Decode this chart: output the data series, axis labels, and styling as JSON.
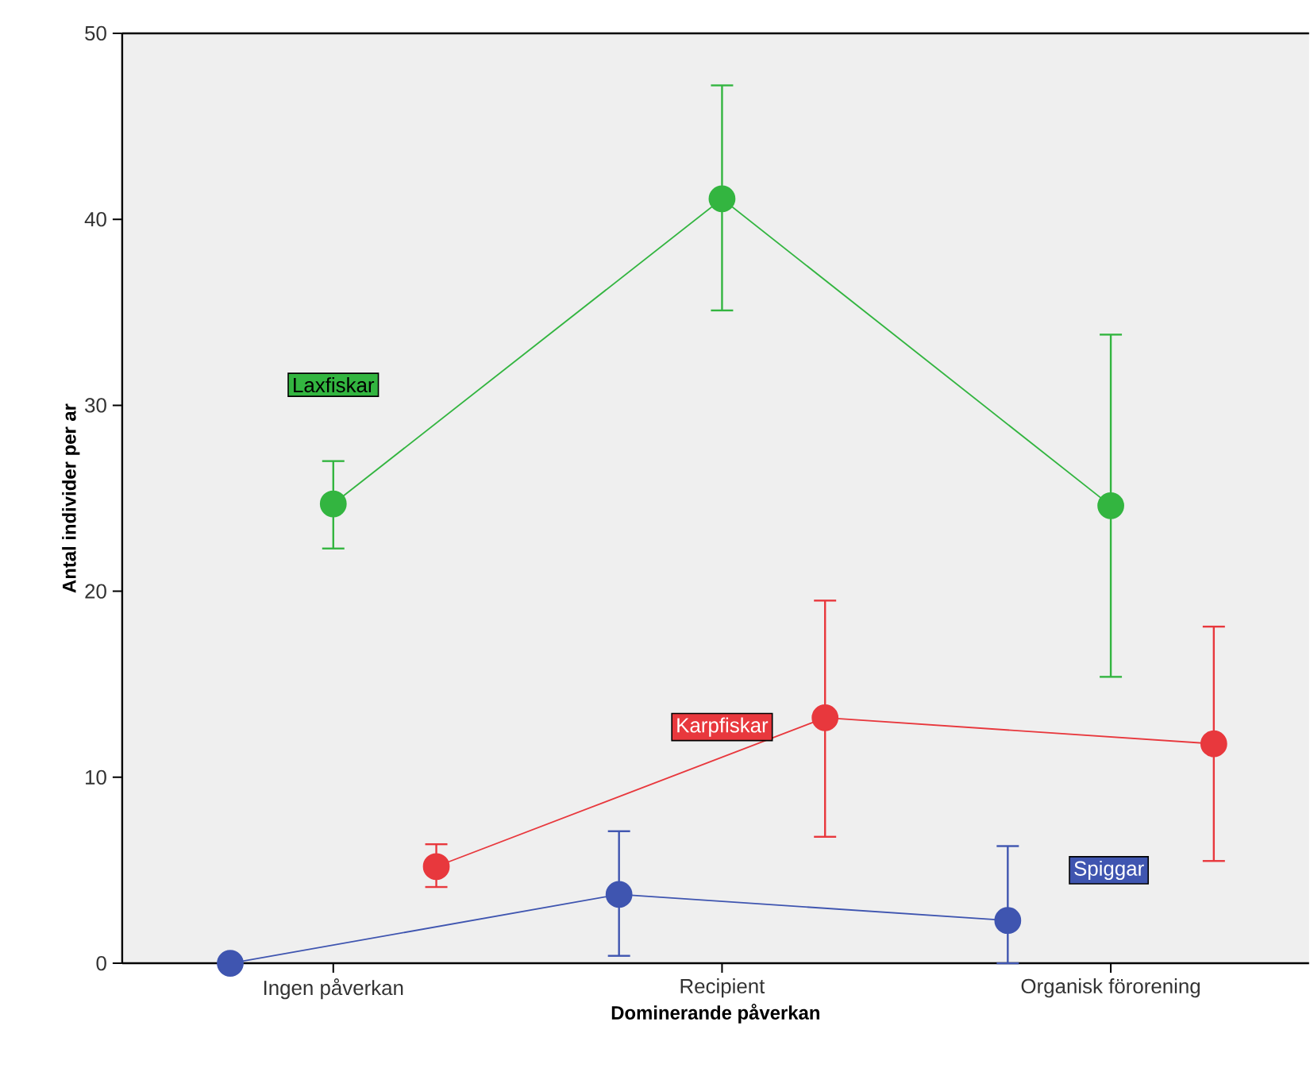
{
  "chart_data": {
    "type": "line",
    "xlabel": "Dominerande påverkan",
    "ylabel": "Antal individer per ar",
    "categories": [
      "Ingen påverkan",
      "Recipient",
      "Organisk förorening"
    ],
    "series": [
      {
        "name": "Spiggar",
        "color": "#3f55b0",
        "values": [
          0,
          3.7,
          2.3
        ],
        "errors": [
          null,
          [
            0.4,
            7.1
          ],
          [
            0,
            6.3
          ]
        ]
      },
      {
        "name": "Laxfiskar",
        "color": "#33b540",
        "values": [
          24.7,
          41.1,
          24.6
        ],
        "errors": [
          [
            22.3,
            27.0
          ],
          [
            35.1,
            47.2
          ],
          [
            15.4,
            33.8
          ]
        ]
      },
      {
        "name": "Karpfiskar",
        "color": "#e8383d",
        "values": [
          5.2,
          13.2,
          11.8
        ],
        "errors": [
          [
            4.1,
            6.4
          ],
          [
            6.8,
            19.5
          ],
          [
            5.5,
            18.1
          ]
        ]
      }
    ],
    "ylim": [
      0,
      50
    ],
    "yticks": [
      0,
      10,
      20,
      30,
      40,
      50
    ],
    "marker": "circle",
    "line_style": "solid"
  }
}
